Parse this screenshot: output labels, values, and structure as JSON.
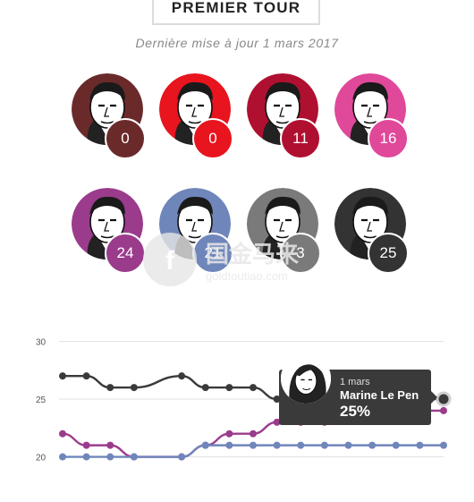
{
  "header": {
    "title": "PREMIER TOUR",
    "subtitle": "Dernière mise à jour 1 mars 2017"
  },
  "candidates": [
    {
      "score": "0",
      "color": "#6b2a2a"
    },
    {
      "score": "0",
      "color": "#e8141e"
    },
    {
      "score": "11",
      "color": "#b01030"
    },
    {
      "score": "16",
      "color": "#e0489a"
    },
    {
      "score": "24",
      "color": "#9b3b8c"
    },
    {
      "score": "21",
      "color": "#6f86bb"
    },
    {
      "score": "3",
      "color": "#7a7a7a"
    },
    {
      "score": "25",
      "color": "#333333"
    }
  ],
  "watermark": {
    "line1": "国金马来",
    "line2": "goldtoutiao.com"
  },
  "tooltip": {
    "date": "1 mars",
    "name": "Marine Le Pen",
    "value": "25%"
  },
  "chart_data": {
    "type": "line",
    "title": "",
    "xlabel": "",
    "ylabel": "",
    "ylim": [
      19.5,
      30.5
    ],
    "yticks": [
      20,
      25,
      30
    ],
    "grid": true,
    "series": [
      {
        "color": "#3a3a3a",
        "values": [
          27,
          27,
          26,
          26,
          27,
          26,
          26,
          26,
          25,
          25,
          25,
          25,
          25,
          25,
          25,
          25
        ]
      },
      {
        "color": "#9b3b8c",
        "values": [
          22,
          21,
          21,
          20,
          20,
          21,
          22,
          22,
          23,
          23,
          23,
          24,
          24,
          24,
          24,
          24
        ]
      },
      {
        "color": "#6f86bb",
        "values": [
          20,
          20,
          20,
          20,
          20,
          21,
          21,
          21,
          21,
          21,
          21,
          21,
          21,
          21,
          21,
          21
        ]
      }
    ],
    "x": [
      0,
      1,
      2,
      3,
      5,
      6,
      7,
      8,
      9,
      10,
      11,
      12,
      13,
      14,
      15,
      16
    ]
  }
}
